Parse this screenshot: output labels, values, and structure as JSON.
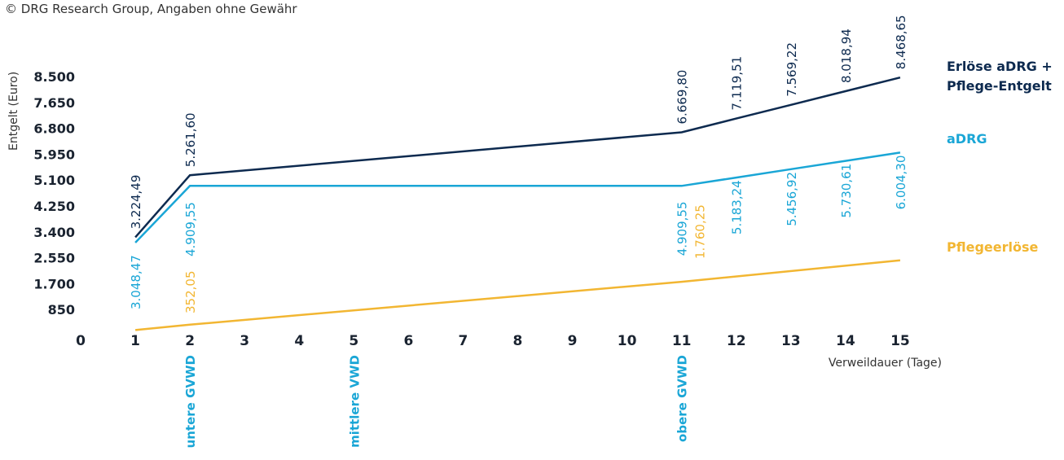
{
  "copyright": "© DRG Research Group, Angaben ohne Gewähr",
  "chart_data": {
    "type": "line",
    "ylabel": "Entgelt (Euro)",
    "xlabel": "Verweildauer (Tage)",
    "xlim": [
      0,
      15
    ],
    "ylim": [
      0,
      8500
    ],
    "x_ticks": [
      "0",
      "1",
      "2",
      "3",
      "4",
      "5",
      "6",
      "7",
      "8",
      "9",
      "10",
      "11",
      "12",
      "13",
      "14",
      "15"
    ],
    "y_ticks": [
      {
        "value": 850,
        "label": "850"
      },
      {
        "value": 1700,
        "label": "1.700"
      },
      {
        "value": 2550,
        "label": "2.550"
      },
      {
        "value": 3400,
        "label": "3.400"
      },
      {
        "value": 4250,
        "label": "4.250"
      },
      {
        "value": 5100,
        "label": "5.100"
      },
      {
        "value": 5950,
        "label": "5.950"
      },
      {
        "value": 6800,
        "label": "6.800"
      },
      {
        "value": 7650,
        "label": "7.650"
      },
      {
        "value": 8500,
        "label": "8.500"
      }
    ],
    "series": [
      {
        "name": "Erlöse aDRG + Pflege-Entgelt",
        "name_lines": [
          "Erlöse aDRG +",
          "Pflege-Entgelt"
        ],
        "color": "#0d2a4f",
        "points": [
          [
            1,
            3224.49
          ],
          [
            2,
            5261.6
          ],
          [
            11,
            6669.8
          ],
          [
            12,
            7119.51
          ],
          [
            13,
            7569.22
          ],
          [
            14,
            8018.94
          ],
          [
            15,
            8468.65
          ]
        ],
        "labels": [
          {
            "x": 1,
            "text": "3.224,49"
          },
          {
            "x": 2,
            "text": "5.261,60"
          },
          {
            "x": 11,
            "text": "6.669,80"
          },
          {
            "x": 12,
            "text": "7.119,51"
          },
          {
            "x": 13,
            "text": "7.569,22"
          },
          {
            "x": 14,
            "text": "8.018,94"
          },
          {
            "x": 15,
            "text": "8.468,65"
          }
        ]
      },
      {
        "name": "aDRG",
        "name_lines": [
          "aDRG"
        ],
        "color": "#1aa6d6",
        "points": [
          [
            1,
            3048.47
          ],
          [
            2,
            4909.55
          ],
          [
            11,
            4909.55
          ],
          [
            12,
            5183.24
          ],
          [
            13,
            5456.92
          ],
          [
            14,
            5730.61
          ],
          [
            15,
            6004.3
          ]
        ],
        "labels": [
          {
            "x": 1,
            "text": "3.048,47"
          },
          {
            "x": 2,
            "text": "4.909,55"
          },
          {
            "x": 11,
            "text": "4.909,55"
          },
          {
            "x": 12,
            "text": "5.183,24"
          },
          {
            "x": 13,
            "text": "5.456,92"
          },
          {
            "x": 14,
            "text": "5.730,61"
          },
          {
            "x": 15,
            "text": "6.004,30"
          }
        ]
      },
      {
        "name": "Pflegeerlöse",
        "name_lines": [
          "Pflegeerlöse"
        ],
        "color": "#f2b632",
        "points": [
          [
            1,
            176.03
          ],
          [
            2,
            352.05
          ],
          [
            11,
            1760.25
          ],
          [
            15,
            2464.35
          ]
        ],
        "labels": [
          {
            "x": 2,
            "text": "352,05"
          },
          {
            "x": 11,
            "text": "1.760,25"
          }
        ]
      }
    ],
    "markers": [
      {
        "x": 2,
        "label": "untere GVWD"
      },
      {
        "x": 5,
        "label": "mittlere VWD"
      },
      {
        "x": 11,
        "label": "obere GVWD"
      }
    ],
    "marker_color": "#1aa6d6",
    "grid": false,
    "legend": "inline-right"
  }
}
